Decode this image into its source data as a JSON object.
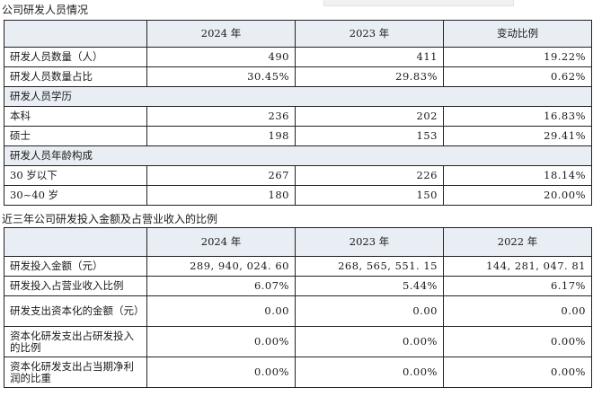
{
  "table1": {
    "caption": "公司研发人员情况",
    "headers": [
      "",
      "2024 年",
      "2023 年",
      "变动比例"
    ],
    "rows": [
      {
        "type": "data",
        "cells": [
          "研发人员数量（人）",
          "490",
          "411",
          "19.22%"
        ]
      },
      {
        "type": "data",
        "cells": [
          "研发人员数量占比",
          "30.45%",
          "29.83%",
          "0.62%"
        ]
      },
      {
        "type": "section",
        "cells": [
          "研发人员学历"
        ]
      },
      {
        "type": "data",
        "cells": [
          "本科",
          "236",
          "202",
          "16.83%"
        ]
      },
      {
        "type": "data",
        "cells": [
          "硕士",
          "198",
          "153",
          "29.41%"
        ]
      },
      {
        "type": "section",
        "cells": [
          "研发人员年龄构成"
        ]
      },
      {
        "type": "data",
        "cells": [
          "30 岁以下",
          "267",
          "226",
          "18.14%"
        ]
      },
      {
        "type": "data",
        "cells": [
          "30~40 岁",
          "180",
          "150",
          "20.00%"
        ]
      }
    ]
  },
  "table2": {
    "caption": "近三年公司研发投入金额及占营业收入的比例",
    "headers": [
      "",
      "2024 年",
      "2023 年",
      "2022 年"
    ],
    "rows": [
      {
        "cells": [
          "研发投入金额（元）",
          "289, 940, 024. 60",
          "268, 565, 551. 15",
          "144, 281, 047. 81"
        ]
      },
      {
        "cells": [
          "研发投入占营业收入比例",
          "6.07%",
          "5.44%",
          "6.17%"
        ]
      },
      {
        "cells": [
          "研发支出资本化的金额（元）",
          "0.00",
          "0.00",
          "0.00"
        ]
      },
      {
        "cells": [
          "资本化研发支出占研发投入的比例",
          "0.00%",
          "0.00%",
          "0.00%"
        ]
      },
      {
        "cells": [
          "资本化研发支出占当期净利润的比重",
          "0.00%",
          "0.00%",
          "0.00%"
        ]
      }
    ]
  }
}
